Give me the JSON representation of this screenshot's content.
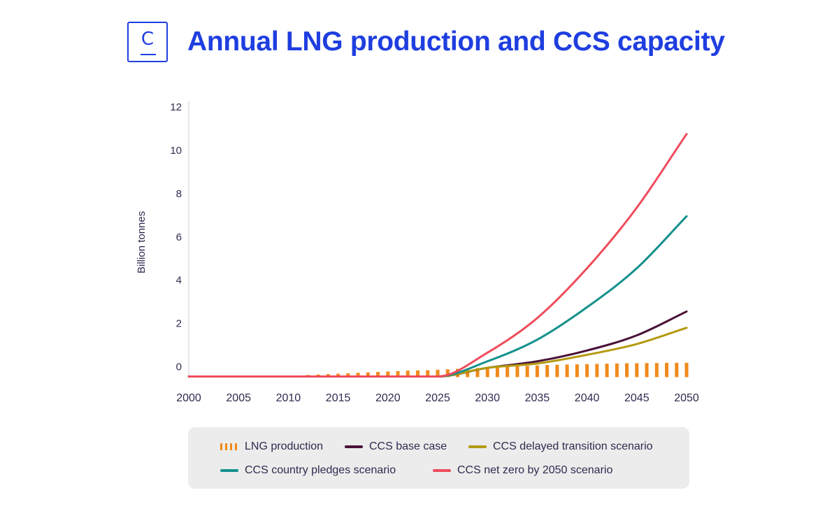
{
  "header": {
    "logo_letter": "C",
    "title": "Annual LNG production and CCS capacity"
  },
  "colors": {
    "brand": "#1f3ee0",
    "lng": "#f08a1c",
    "base": "#4a1238",
    "delayed": "#b39a0f",
    "pledges": "#14918c",
    "netzero": "#ef4c5c",
    "text": "#2e2b4f",
    "legend_bg": "#ececec"
  },
  "chart_data": {
    "type": "line",
    "title": "Annual LNG production and CCS capacity",
    "ylabel": "Billion tonnes",
    "xlabel": "",
    "xlim": [
      2000,
      2050
    ],
    "ylim": [
      -0.5,
      12
    ],
    "x_ticks": [
      2000,
      2005,
      2010,
      2015,
      2020,
      2025,
      2030,
      2035,
      2040,
      2045,
      2050
    ],
    "y_ticks": [
      0,
      2,
      4,
      6,
      8,
      10,
      12
    ],
    "grid": false,
    "legend_position": "bottom",
    "bar_series": {
      "name": "LNG production",
      "color_key": "lng",
      "x": [
        2010,
        2011,
        2012,
        2013,
        2014,
        2015,
        2016,
        2017,
        2018,
        2019,
        2020,
        2021,
        2022,
        2023,
        2024,
        2025,
        2026,
        2027,
        2028,
        2029,
        2030,
        2031,
        2032,
        2033,
        2034,
        2035,
        2036,
        2037,
        2038,
        2039,
        2040,
        2041,
        2042,
        2043,
        2044,
        2045,
        2046,
        2047,
        2048,
        2049,
        2050
      ],
      "values": [
        -0.42,
        -0.4,
        -0.38,
        -0.36,
        -0.34,
        -0.32,
        -0.3,
        -0.28,
        -0.26,
        -0.24,
        -0.22,
        -0.2,
        -0.18,
        -0.17,
        -0.16,
        -0.14,
        -0.12,
        -0.1,
        -0.08,
        -0.06,
        -0.04,
        -0.02,
        0.0,
        0.02,
        0.04,
        0.06,
        0.08,
        0.09,
        0.1,
        0.11,
        0.12,
        0.13,
        0.14,
        0.15,
        0.16,
        0.16,
        0.17,
        0.17,
        0.18,
        0.18,
        0.18
      ]
    },
    "series": [
      {
        "name": "CCS base case",
        "color_key": "base",
        "x": [
          2000,
          2005,
          2010,
          2015,
          2020,
          2025,
          2030,
          2035,
          2040,
          2045,
          2050
        ],
        "values": [
          -0.45,
          -0.45,
          -0.45,
          -0.45,
          -0.45,
          -0.45,
          -0.05,
          0.25,
          0.75,
          1.45,
          2.55
        ]
      },
      {
        "name": "CCS delayed transition scenario",
        "color_key": "delayed",
        "x": [
          2000,
          2005,
          2010,
          2015,
          2020,
          2025,
          2030,
          2035,
          2040,
          2045,
          2050
        ],
        "values": [
          -0.45,
          -0.45,
          -0.45,
          -0.45,
          -0.45,
          -0.45,
          -0.05,
          0.15,
          0.55,
          1.05,
          1.8
        ]
      },
      {
        "name": "CCS country pledges scenario",
        "color_key": "pledges",
        "x": [
          2000,
          2005,
          2010,
          2015,
          2020,
          2025,
          2030,
          2035,
          2040,
          2045,
          2050
        ],
        "values": [
          -0.45,
          -0.45,
          -0.45,
          -0.45,
          -0.45,
          -0.45,
          0.25,
          1.25,
          2.75,
          4.55,
          6.95
        ]
      },
      {
        "name": "CCS net zero by 2050 scenario",
        "color_key": "netzero",
        "x": [
          2000,
          2005,
          2010,
          2015,
          2020,
          2025,
          2030,
          2035,
          2040,
          2045,
          2050
        ],
        "values": [
          -0.45,
          -0.45,
          -0.45,
          -0.45,
          -0.45,
          -0.45,
          0.65,
          2.25,
          4.55,
          7.35,
          10.75
        ]
      }
    ]
  },
  "legend": {
    "items": [
      {
        "label": "LNG production",
        "kind": "dash",
        "color_key": "lng"
      },
      {
        "label": "CCS base case",
        "kind": "line",
        "color_key": "base"
      },
      {
        "label": "CCS delayed transition scenario",
        "kind": "line",
        "color_key": "delayed"
      },
      {
        "label": "CCS country pledges scenario",
        "kind": "line",
        "color_key": "pledges"
      },
      {
        "label": "CCS net zero by 2050 scenario",
        "kind": "line",
        "color_key": "netzero"
      }
    ]
  }
}
